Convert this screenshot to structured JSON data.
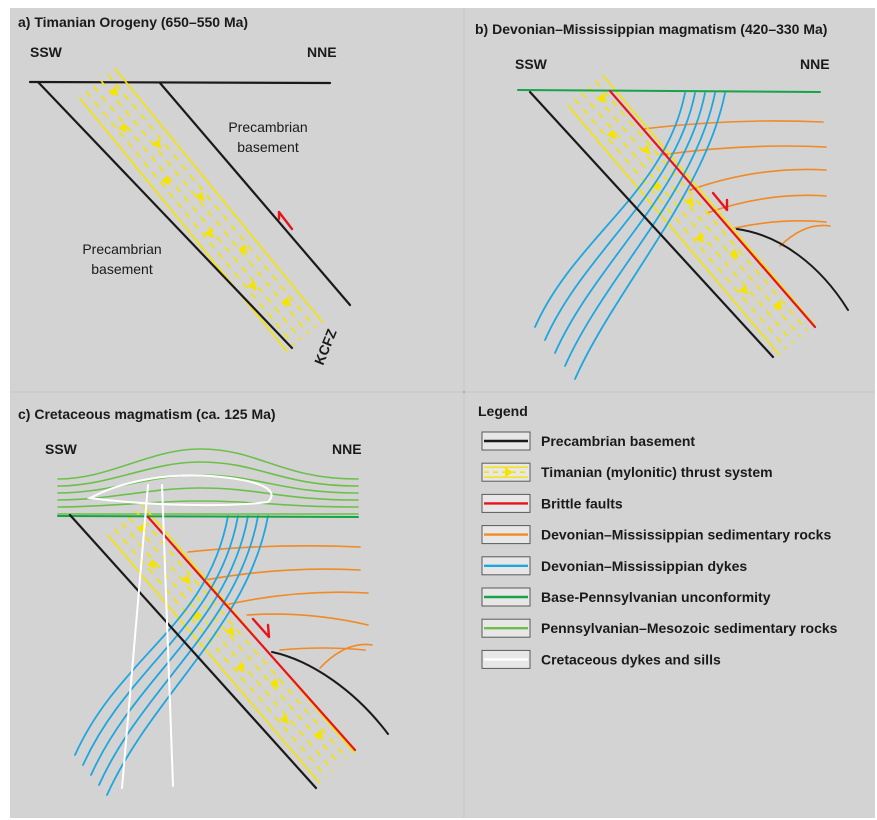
{
  "colors": {
    "background": "#d3d3d3",
    "panel_border": "#9a9a9a",
    "precambrian": "#1a1a1a",
    "timanian": "#f5e400",
    "brittle": "#e8141c",
    "dev_sed": "#f08a24",
    "dykes": "#1ea6e0",
    "base_penn": "#16a34a",
    "penn_meso": "#6cc04a",
    "cretaceous": "#ffffff"
  },
  "panels": {
    "a": {
      "title": "a) Timanian Orogeny (650–550 Ma)",
      "left_dir": "SSW",
      "right_dir": "NNE",
      "label_upper": [
        "Precambrian",
        "basement"
      ],
      "label_lower": [
        "Precambrian",
        "basement"
      ],
      "fault_zone": "KCFZ"
    },
    "b": {
      "title": "b) Devonian–Mississippian magmatism (420–330 Ma)",
      "left_dir": "SSW",
      "right_dir": "NNE"
    },
    "c": {
      "title": "c) Cretaceous magmatism (ca. 125 Ma)",
      "left_dir": "SSW",
      "right_dir": "NNE"
    }
  },
  "legend": {
    "title": "Legend",
    "items": [
      {
        "label": "Precambrian basement",
        "symbol": "precambrian"
      },
      {
        "label": "Timanian (mylonitic) thrust system",
        "symbol": "timanian"
      },
      {
        "label": "Brittle faults",
        "symbol": "brittle"
      },
      {
        "label": "Devonian–Mississippian sedimentary rocks",
        "symbol": "dev_sed"
      },
      {
        "label": "Devonian–Mississippian dykes",
        "symbol": "dykes"
      },
      {
        "label": "Base-Pennsylvanian unconformity",
        "symbol": "base_penn"
      },
      {
        "label": "Pennsylvanian–Mesozoic sedimentary rocks",
        "symbol": "penn_meso"
      },
      {
        "label": "Cretaceous dykes and sills",
        "symbol": "cretaceous"
      }
    ]
  }
}
